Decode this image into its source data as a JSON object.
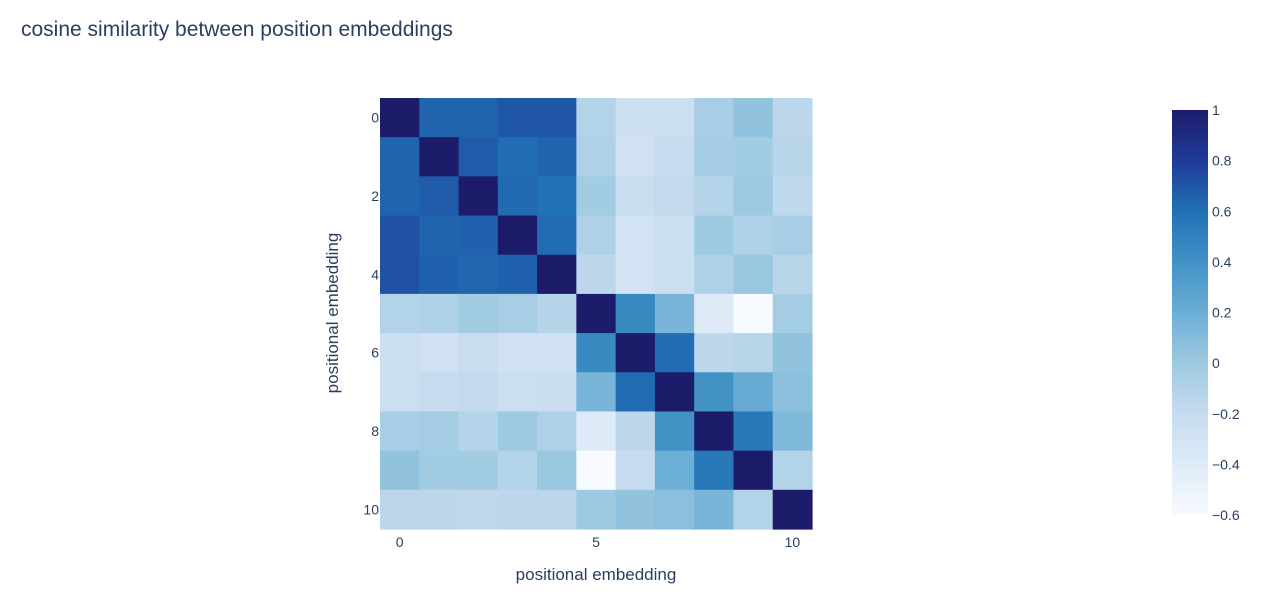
{
  "chart_data": {
    "type": "heatmap",
    "title": "cosine similarity between position embeddings",
    "xlabel": "positional embedding",
    "ylabel": "positional embedding",
    "x_ticks": [
      "0",
      "5",
      "10"
    ],
    "y_ticks": [
      "0",
      "2",
      "4",
      "6",
      "8",
      "10"
    ],
    "x": [
      0,
      1,
      2,
      3,
      4,
      5,
      6,
      7,
      8,
      9,
      10
    ],
    "y": [
      0,
      1,
      2,
      3,
      4,
      5,
      6,
      7,
      8,
      9,
      10
    ],
    "z": [
      [
        1.0,
        0.65,
        0.65,
        0.7,
        0.7,
        -0.1,
        -0.25,
        -0.25,
        -0.05,
        0.05,
        -0.15
      ],
      [
        0.65,
        1.0,
        0.68,
        0.62,
        0.65,
        -0.08,
        -0.28,
        -0.2,
        -0.03,
        -0.02,
        -0.13
      ],
      [
        0.65,
        0.68,
        1.0,
        0.63,
        0.6,
        -0.02,
        -0.22,
        -0.18,
        -0.12,
        0.0,
        -0.16
      ],
      [
        0.72,
        0.65,
        0.66,
        1.0,
        0.62,
        -0.08,
        -0.3,
        -0.25,
        0.0,
        -0.08,
        -0.05
      ],
      [
        0.72,
        0.66,
        0.64,
        0.66,
        1.0,
        -0.15,
        -0.3,
        -0.25,
        -0.08,
        0.02,
        -0.13
      ],
      [
        -0.1,
        -0.08,
        -0.02,
        -0.05,
        -0.12,
        1.0,
        0.45,
        0.15,
        -0.4,
        -0.6,
        -0.03
      ],
      [
        -0.25,
        -0.28,
        -0.22,
        -0.28,
        -0.28,
        0.45,
        1.0,
        0.62,
        -0.15,
        -0.13,
        0.05
      ],
      [
        -0.25,
        -0.2,
        -0.18,
        -0.25,
        -0.24,
        0.15,
        0.62,
        1.0,
        0.4,
        0.22,
        0.07
      ],
      [
        -0.05,
        -0.03,
        -0.12,
        0.0,
        -0.08,
        -0.4,
        -0.15,
        0.4,
        1.0,
        0.55,
        0.12
      ],
      [
        0.05,
        -0.02,
        -0.02,
        -0.1,
        0.02,
        -0.6,
        -0.2,
        0.2,
        0.55,
        1.0,
        -0.1
      ],
      [
        -0.15,
        -0.15,
        -0.17,
        -0.15,
        -0.15,
        0.0,
        0.05,
        0.08,
        0.15,
        -0.1,
        1.0
      ]
    ],
    "zlim": [
      -0.6,
      1
    ],
    "colorscale": [
      "#f7fbff",
      "#deebf7",
      "#c6dbef",
      "#9ecae1",
      "#6baed6",
      "#4292c6",
      "#2171b5",
      "#1f3b99",
      "#1c1c6b"
    ],
    "colorbar_ticks": [
      "1",
      "0.8",
      "0.6",
      "0.4",
      "0.2",
      "0",
      "−0.2",
      "−0.4",
      "−0.6"
    ],
    "colorbar_tick_values": [
      1,
      0.8,
      0.6,
      0.4,
      0.2,
      0,
      -0.2,
      -0.4,
      -0.6
    ],
    "grid": false
  }
}
